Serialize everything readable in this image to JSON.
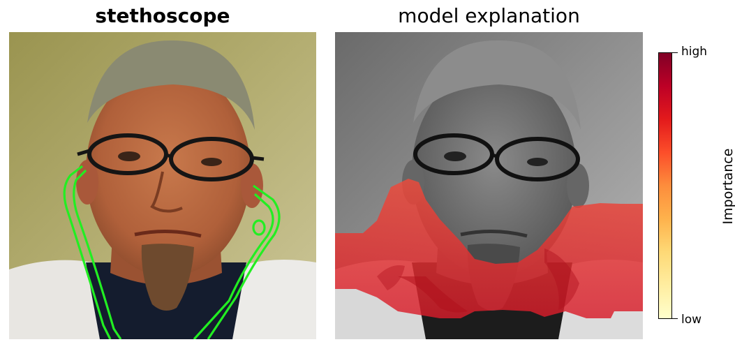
{
  "left_panel": {
    "title": "stethoscope"
  },
  "right_panel": {
    "title": "model explanation"
  },
  "colorbar": {
    "label": "Importance",
    "high_label": "high",
    "low_label": "low",
    "colormap": [
      "#ffffcc",
      "#ffeda0",
      "#fed976",
      "#feb24c",
      "#fd8d3c",
      "#fc4e2a",
      "#e31a1c",
      "#bd0026",
      "#800026"
    ]
  },
  "colors": {
    "outline": "#22ee22",
    "heatmap": "#e8222a"
  }
}
